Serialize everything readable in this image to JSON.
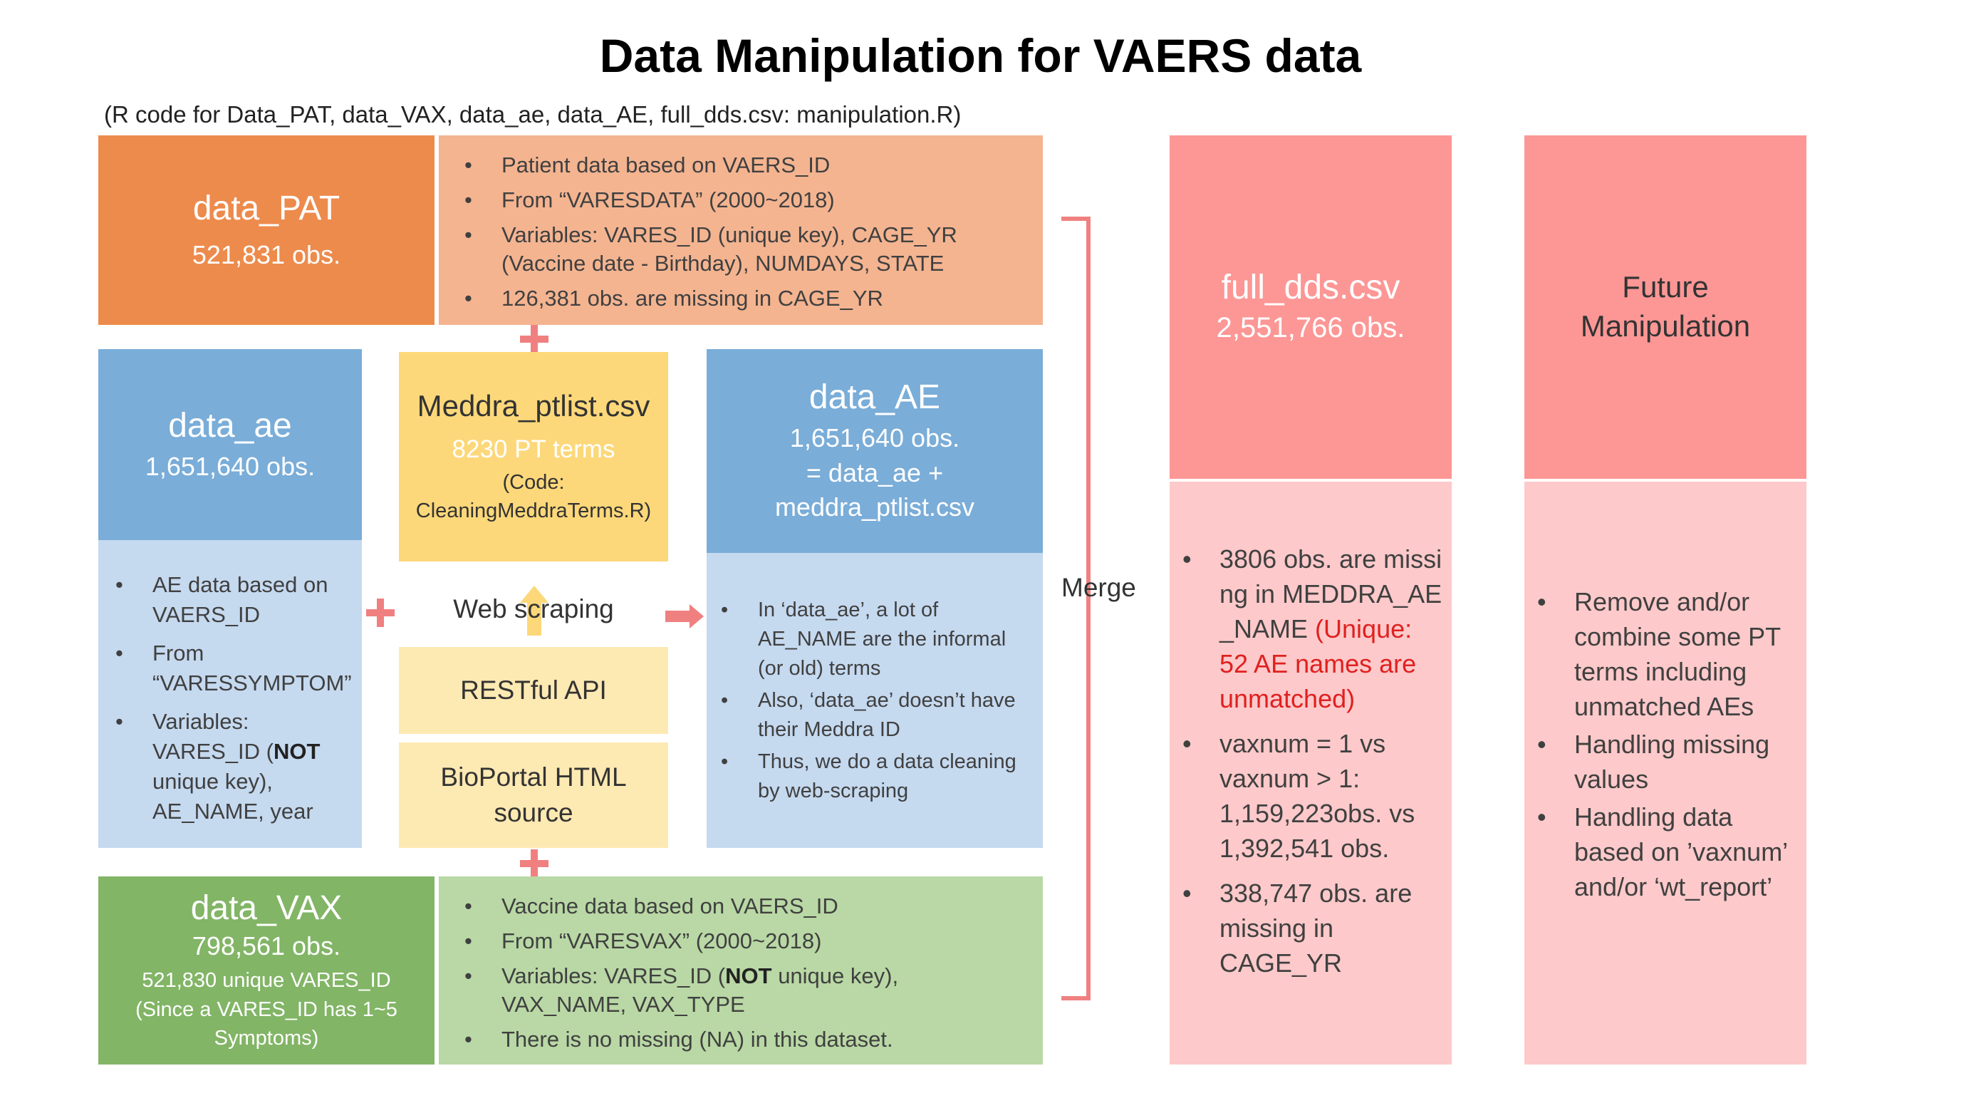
{
  "title": "Data Manipulation for VAERS data",
  "subtitle": "(R code for Data_PAT, data_VAX, data_ae, data_AE, full_dds.csv: manipulation.R)",
  "pat": {
    "name": "data_PAT",
    "obs": "521,831 obs.",
    "bullets": [
      "Patient data based on VAERS_ID",
      "From “VARESDATA” (2000~2018)",
      "Variables: VARES_ID (unique key), CAGE_YR (Vaccine date  - Birthday), NUMDAYS, STATE",
      "126,381 obs. are missing in CAGE_YR"
    ]
  },
  "ae": {
    "name": "data_ae",
    "obs": "1,651,640 obs.",
    "bullet1": "AE data based on VAERS_ID",
    "bullet2": "From “VARESSYMPTOM”",
    "bullet3_pre": "Variables: VARES_ID (",
    "bullet3_bold": "NOT",
    "bullet3_post": " unique key), AE_NAME, year"
  },
  "meddra": {
    "name": "Meddra_ptlist.csv",
    "terms": "8230 PT terms",
    "code": "(Code: CleaningMeddraTerms.R)"
  },
  "web_scraping": "Web scraping",
  "restful": "RESTful API",
  "bioportal": "BioPortal HTML source",
  "AE": {
    "name": "data_AE",
    "obs": "1,651,640 obs.",
    "formula": "= data_ae + meddra_ptlist.csv",
    "bullets": [
      "In ‘data_ae’, a lot of AE_NAME are the informal (or old) terms",
      "Also, ‘data_ae’ doesn’t have their Meddra ID",
      "Thus, we do a data cleaning by web-scraping"
    ]
  },
  "vax": {
    "name": "data_VAX",
    "obs": "798,561 obs.",
    "unique": "521,830 unique VARES_ID (Since a VARES_ID has 1~5 Symptoms)",
    "bullet1": "Vaccine data based on VAERS_ID",
    "bullet2": "From “VARESVAX” (2000~2018)",
    "bullet3_pre": "Variables: VARES_ID (",
    "bullet3_bold": "NOT",
    "bullet3_post": " unique key), VAX_NAME, VAX_TYPE",
    "bullet4": "There is no missing (NA) in this dataset."
  },
  "merge": "Merge",
  "full": {
    "name": "full_dds.csv",
    "obs": "2,551,766 obs.",
    "bullet1_pre": "3806 obs. are missing in MEDDRA_AE_NAME",
    "bullet1_red": "(Unique: 52 AE names are unmatched)",
    "bullet2": "vaxnum = 1 vs vaxnum > 1: 1,159,223obs. vs 1,392,541 obs.",
    "bullet3": "338,747 obs. are missing in CAGE_YR"
  },
  "future": {
    "name": "Future Manipulation",
    "bullets": [
      "Remove and/or combine some PT terms including unmatched AEs",
      "Handling missing values",
      "Handling data based on ’vaxnum’ and/or ‘wt_report’"
    ]
  },
  "colors": {
    "orange_dark": "#ed8b4c",
    "orange_light": "#f4b490",
    "blue_dark": "#7aadd8",
    "blue_light": "#c5d9ef",
    "yellow_dark": "#fdd87a",
    "yellow_light": "#fde9b2",
    "green_dark": "#82b566",
    "green_light": "#b9d8a5",
    "pink_dark": "#fc9795",
    "pink_light": "#fdc9ca",
    "accent": "#f08080"
  }
}
